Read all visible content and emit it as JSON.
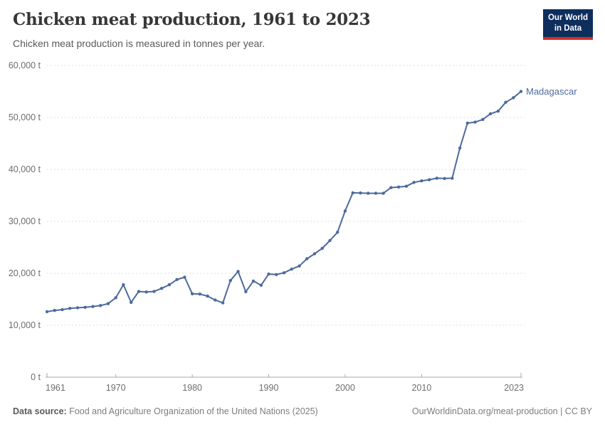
{
  "header": {
    "title": "Chicken meat production, 1961 to 2023",
    "subtitle": "Chicken meat production is measured in tonnes per year.",
    "logo": {
      "line1": "Our World",
      "line2": "in Data",
      "bg": "#0e2e5c",
      "bar": "#d22e27"
    }
  },
  "chart_data": {
    "type": "line",
    "title": "Chicken meat production, 1961 to 2023",
    "unit": "t",
    "xlim": [
      1961,
      2023
    ],
    "ylim": [
      0,
      60000
    ],
    "grid": "horizontal-dashed",
    "legend": "end-of-line-label",
    "xticks": [
      1961,
      1970,
      1980,
      1990,
      2000,
      2010,
      2023
    ],
    "yticks": [
      {
        "value": 0,
        "label": "0 t"
      },
      {
        "value": 10000,
        "label": "10,000 t"
      },
      {
        "value": 20000,
        "label": "20,000 t"
      },
      {
        "value": 30000,
        "label": "30,000 t"
      },
      {
        "value": 40000,
        "label": "40,000 t"
      },
      {
        "value": 50000,
        "label": "50,000 t"
      },
      {
        "value": 60000,
        "label": "60,000 t"
      }
    ],
    "series": [
      {
        "name": "Madagascar",
        "color": "#4c6a9c",
        "x": [
          1961,
          1962,
          1963,
          1964,
          1965,
          1966,
          1967,
          1968,
          1969,
          1970,
          1971,
          1972,
          1973,
          1974,
          1975,
          1976,
          1977,
          1978,
          1979,
          1980,
          1981,
          1982,
          1983,
          1984,
          1985,
          1986,
          1987,
          1988,
          1989,
          1990,
          1991,
          1992,
          1993,
          1994,
          1995,
          1996,
          1997,
          1998,
          1999,
          2000,
          2001,
          2002,
          2003,
          2004,
          2005,
          2006,
          2007,
          2008,
          2009,
          2010,
          2011,
          2012,
          2013,
          2014,
          2015,
          2016,
          2017,
          2018,
          2019,
          2020,
          2021,
          2022,
          2023
        ],
        "values": [
          12600,
          12850,
          13000,
          13250,
          13350,
          13450,
          13600,
          13800,
          14150,
          15300,
          17800,
          14400,
          16500,
          16400,
          16500,
          17100,
          17800,
          18800,
          19250,
          16050,
          16000,
          15600,
          14850,
          14300,
          18600,
          20350,
          16450,
          18500,
          17700,
          19850,
          19750,
          20100,
          20800,
          21400,
          22800,
          23750,
          24800,
          26300,
          27900,
          32000,
          35500,
          35450,
          35400,
          35400,
          35400,
          36500,
          36600,
          36750,
          37500,
          37800,
          38000,
          38300,
          38250,
          38300,
          44100,
          48900,
          49100,
          49600,
          50700,
          51200,
          52900,
          53800,
          55000
        ]
      }
    ]
  },
  "colors": {
    "line": "#4c6a9c",
    "entity_label": "#4c6a9c",
    "grid": "#dcdcdc",
    "axis": "#a8a8a8",
    "tick_label": "#6e6e6e"
  },
  "footer": {
    "source_label": "Data source:",
    "source_text": " Food and Agriculture Organization of the United Nations (2025)",
    "link_text": "OurWorldinData.org/meat-production | CC BY"
  }
}
